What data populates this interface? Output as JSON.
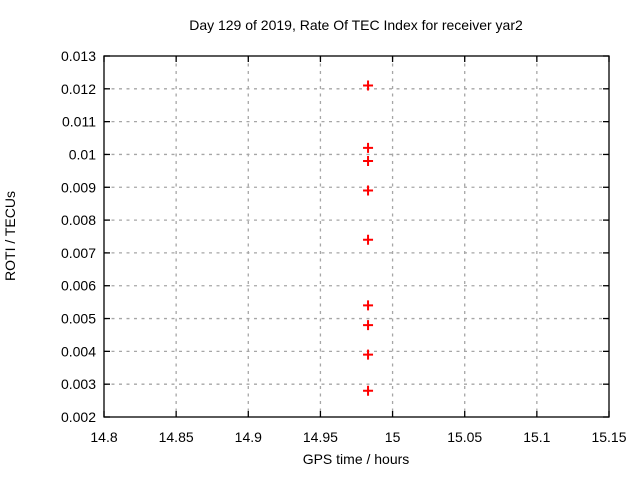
{
  "figure": {
    "background": "#ffffff"
  },
  "chart_data": {
    "type": "scatter",
    "title": "Day 129 of 2019, Rate Of TEC Index for receiver yar2",
    "xlabel": "GPS time / hours",
    "ylabel": "ROTI / TECUs",
    "xlim": [
      14.8,
      15.15
    ],
    "ylim": [
      0.002,
      0.013
    ],
    "xticks": [
      14.8,
      14.85,
      14.9,
      14.95,
      15,
      15.05,
      15.1,
      15.15
    ],
    "xtick_labels": [
      "14.8",
      "14.85",
      "14.9",
      "14.95",
      "15",
      "15.05",
      "15.1",
      "15.15"
    ],
    "yticks": [
      0.002,
      0.003,
      0.004,
      0.005,
      0.006,
      0.007,
      0.008,
      0.009,
      0.01,
      0.011,
      0.012,
      0.013
    ],
    "ytick_labels": [
      "0.002",
      "0.003",
      "0.004",
      "0.005",
      "0.006",
      "0.007",
      "0.008",
      "0.009",
      "0.01",
      "0.011",
      "0.012",
      "0.013"
    ],
    "grid": true,
    "legend": "none",
    "marker_shape": "plus",
    "marker_color": "#ff0000",
    "grid_color": "#a6a6a6",
    "axis_color": "#000000",
    "series": [
      {
        "name": "ROTI",
        "x": [
          14.983,
          14.983,
          14.983,
          14.983,
          14.983,
          14.983,
          14.983,
          14.983,
          14.983
        ],
        "y": [
          0.0121,
          0.0102,
          0.0098,
          0.0089,
          0.0074,
          0.0054,
          0.0048,
          0.0039,
          0.0028
        ]
      }
    ]
  }
}
